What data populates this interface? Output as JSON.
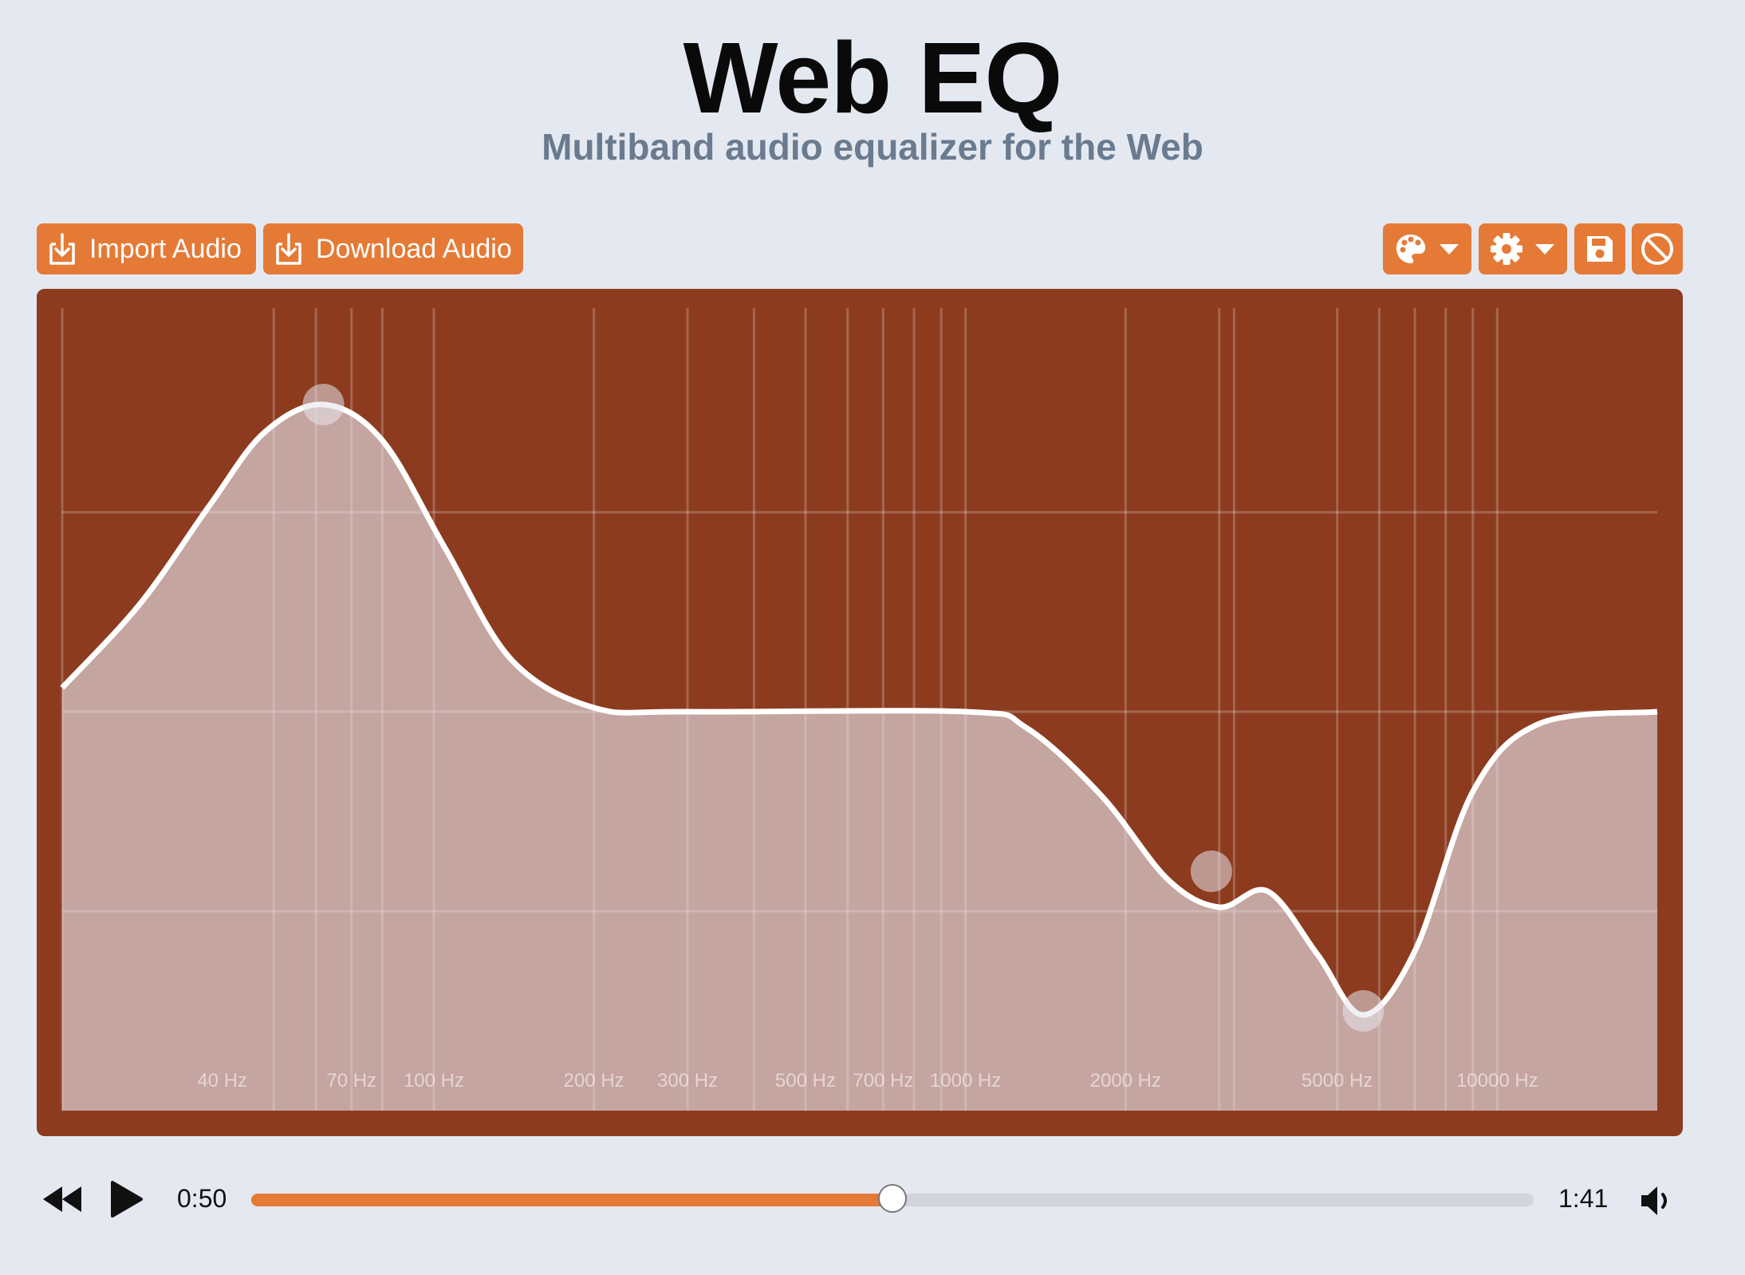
{
  "header": {
    "title": "Web EQ",
    "subtitle": "Multiband audio equalizer for the Web"
  },
  "toolbar": {
    "import_label": "Import Audio",
    "download_label": "Download Audio",
    "palette_icon": "palette-icon",
    "settings_icon": "gear-icon",
    "save_icon": "floppy-disk-icon",
    "reset_icon": "ban-icon"
  },
  "colors": {
    "accent": "#e57a36",
    "panel": "#8c3b1f",
    "background": "#e4e9f1",
    "curve": "#ffffff"
  },
  "chart_data": {
    "type": "area",
    "x_scale": "log",
    "xlim": [
      20,
      20000
    ],
    "tick_labels": [
      {
        "label": "40 Hz",
        "freq": 40
      },
      {
        "label": "70 Hz",
        "freq": 70
      },
      {
        "label": "100 Hz",
        "freq": 100
      },
      {
        "label": "200 Hz",
        "freq": 200
      },
      {
        "label": "300 Hz",
        "freq": 300
      },
      {
        "label": "500 Hz",
        "freq": 500
      },
      {
        "label": "700 Hz",
        "freq": 700
      },
      {
        "label": "1000 Hz",
        "freq": 1000
      },
      {
        "label": "2000 Hz",
        "freq": 2000
      },
      {
        "label": "5000 Hz",
        "freq": 5000
      },
      {
        "label": "10000 Hz",
        "freq": 10000
      }
    ],
    "grid_freqs": [
      20,
      50,
      60,
      70,
      80,
      100,
      200,
      300,
      400,
      500,
      600,
      700,
      800,
      900,
      1000,
      2000,
      3000,
      3200,
      5000,
      6000,
      7000,
      8000,
      9000,
      10000
    ],
    "bands": [
      {
        "freq": 62,
        "gain": 0.77
      },
      {
        "freq": 2900,
        "gain": -0.4
      },
      {
        "freq": 5600,
        "gain": -0.75
      }
    ],
    "curve": [
      {
        "freq": 20,
        "gain": 0.06
      },
      {
        "freq": 28,
        "gain": 0.27
      },
      {
        "freq": 38,
        "gain": 0.52
      },
      {
        "freq": 48,
        "gain": 0.7
      },
      {
        "freq": 62,
        "gain": 0.77
      },
      {
        "freq": 80,
        "gain": 0.68
      },
      {
        "freq": 105,
        "gain": 0.41
      },
      {
        "freq": 140,
        "gain": 0.13
      },
      {
        "freq": 200,
        "gain": 0.01
      },
      {
        "freq": 300,
        "gain": 0.0
      },
      {
        "freq": 1000,
        "gain": 0.0
      },
      {
        "freq": 1300,
        "gain": -0.04
      },
      {
        "freq": 1800,
        "gain": -0.21
      },
      {
        "freq": 2400,
        "gain": -0.42
      },
      {
        "freq": 3000,
        "gain": -0.49
      },
      {
        "freq": 3700,
        "gain": -0.45
      },
      {
        "freq": 4600,
        "gain": -0.61
      },
      {
        "freq": 5600,
        "gain": -0.76
      },
      {
        "freq": 7000,
        "gain": -0.6
      },
      {
        "freq": 9000,
        "gain": -0.2
      },
      {
        "freq": 12000,
        "gain": -0.03
      },
      {
        "freq": 20000,
        "gain": 0.0
      }
    ],
    "ylim": [
      -1,
      1
    ],
    "grid_gains": [
      0.5,
      0,
      -0.5
    ]
  },
  "player": {
    "current_time": "0:50",
    "total_time": "1:41",
    "progress": 0.5
  }
}
